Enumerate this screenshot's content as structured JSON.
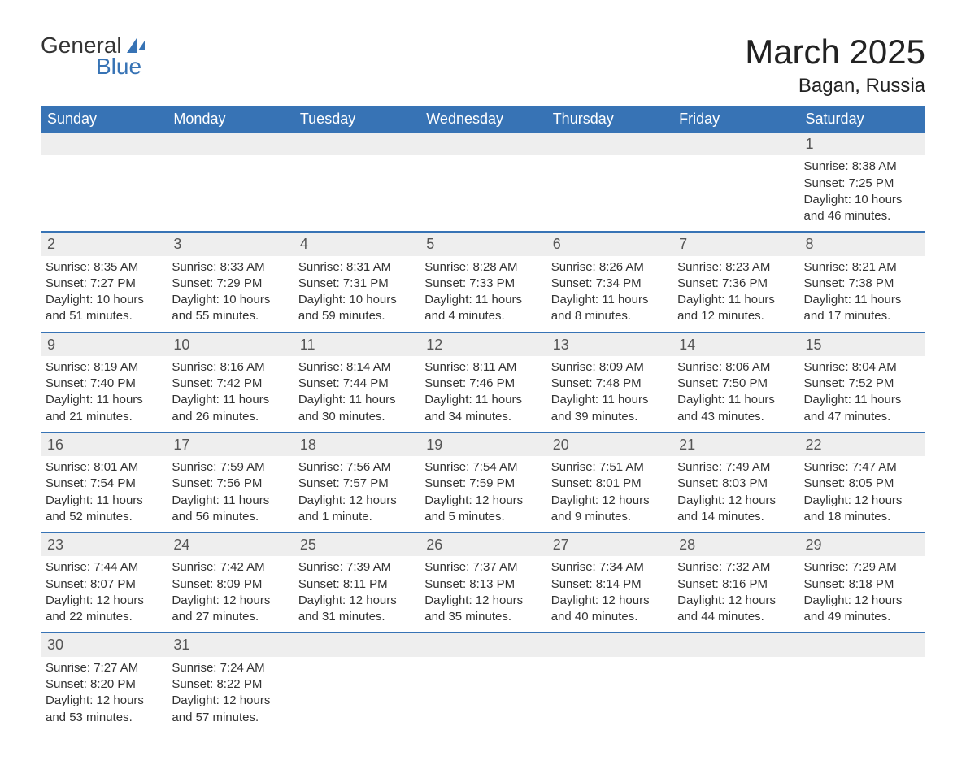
{
  "brand": {
    "word1": "General",
    "word2": "Blue"
  },
  "title": "March 2025",
  "location": "Bagan, Russia",
  "colors": {
    "header_bg": "#3773b5",
    "header_text": "#ffffff",
    "daynum_bg": "#eeeeee",
    "row_border": "#3773b5",
    "body_text": "#333333",
    "background": "#ffffff"
  },
  "weekdays": [
    "Sunday",
    "Monday",
    "Tuesday",
    "Wednesday",
    "Thursday",
    "Friday",
    "Saturday"
  ],
  "weeks": [
    [
      null,
      null,
      null,
      null,
      null,
      null,
      {
        "n": "1",
        "sunrise": "Sunrise: 8:38 AM",
        "sunset": "Sunset: 7:25 PM",
        "day": "Daylight: 10 hours and 46 minutes."
      }
    ],
    [
      {
        "n": "2",
        "sunrise": "Sunrise: 8:35 AM",
        "sunset": "Sunset: 7:27 PM",
        "day": "Daylight: 10 hours and 51 minutes."
      },
      {
        "n": "3",
        "sunrise": "Sunrise: 8:33 AM",
        "sunset": "Sunset: 7:29 PM",
        "day": "Daylight: 10 hours and 55 minutes."
      },
      {
        "n": "4",
        "sunrise": "Sunrise: 8:31 AM",
        "sunset": "Sunset: 7:31 PM",
        "day": "Daylight: 10 hours and 59 minutes."
      },
      {
        "n": "5",
        "sunrise": "Sunrise: 8:28 AM",
        "sunset": "Sunset: 7:33 PM",
        "day": "Daylight: 11 hours and 4 minutes."
      },
      {
        "n": "6",
        "sunrise": "Sunrise: 8:26 AM",
        "sunset": "Sunset: 7:34 PM",
        "day": "Daylight: 11 hours and 8 minutes."
      },
      {
        "n": "7",
        "sunrise": "Sunrise: 8:23 AM",
        "sunset": "Sunset: 7:36 PM",
        "day": "Daylight: 11 hours and 12 minutes."
      },
      {
        "n": "8",
        "sunrise": "Sunrise: 8:21 AM",
        "sunset": "Sunset: 7:38 PM",
        "day": "Daylight: 11 hours and 17 minutes."
      }
    ],
    [
      {
        "n": "9",
        "sunrise": "Sunrise: 8:19 AM",
        "sunset": "Sunset: 7:40 PM",
        "day": "Daylight: 11 hours and 21 minutes."
      },
      {
        "n": "10",
        "sunrise": "Sunrise: 8:16 AM",
        "sunset": "Sunset: 7:42 PM",
        "day": "Daylight: 11 hours and 26 minutes."
      },
      {
        "n": "11",
        "sunrise": "Sunrise: 8:14 AM",
        "sunset": "Sunset: 7:44 PM",
        "day": "Daylight: 11 hours and 30 minutes."
      },
      {
        "n": "12",
        "sunrise": "Sunrise: 8:11 AM",
        "sunset": "Sunset: 7:46 PM",
        "day": "Daylight: 11 hours and 34 minutes."
      },
      {
        "n": "13",
        "sunrise": "Sunrise: 8:09 AM",
        "sunset": "Sunset: 7:48 PM",
        "day": "Daylight: 11 hours and 39 minutes."
      },
      {
        "n": "14",
        "sunrise": "Sunrise: 8:06 AM",
        "sunset": "Sunset: 7:50 PM",
        "day": "Daylight: 11 hours and 43 minutes."
      },
      {
        "n": "15",
        "sunrise": "Sunrise: 8:04 AM",
        "sunset": "Sunset: 7:52 PM",
        "day": "Daylight: 11 hours and 47 minutes."
      }
    ],
    [
      {
        "n": "16",
        "sunrise": "Sunrise: 8:01 AM",
        "sunset": "Sunset: 7:54 PM",
        "day": "Daylight: 11 hours and 52 minutes."
      },
      {
        "n": "17",
        "sunrise": "Sunrise: 7:59 AM",
        "sunset": "Sunset: 7:56 PM",
        "day": "Daylight: 11 hours and 56 minutes."
      },
      {
        "n": "18",
        "sunrise": "Sunrise: 7:56 AM",
        "sunset": "Sunset: 7:57 PM",
        "day": "Daylight: 12 hours and 1 minute."
      },
      {
        "n": "19",
        "sunrise": "Sunrise: 7:54 AM",
        "sunset": "Sunset: 7:59 PM",
        "day": "Daylight: 12 hours and 5 minutes."
      },
      {
        "n": "20",
        "sunrise": "Sunrise: 7:51 AM",
        "sunset": "Sunset: 8:01 PM",
        "day": "Daylight: 12 hours and 9 minutes."
      },
      {
        "n": "21",
        "sunrise": "Sunrise: 7:49 AM",
        "sunset": "Sunset: 8:03 PM",
        "day": "Daylight: 12 hours and 14 minutes."
      },
      {
        "n": "22",
        "sunrise": "Sunrise: 7:47 AM",
        "sunset": "Sunset: 8:05 PM",
        "day": "Daylight: 12 hours and 18 minutes."
      }
    ],
    [
      {
        "n": "23",
        "sunrise": "Sunrise: 7:44 AM",
        "sunset": "Sunset: 8:07 PM",
        "day": "Daylight: 12 hours and 22 minutes."
      },
      {
        "n": "24",
        "sunrise": "Sunrise: 7:42 AM",
        "sunset": "Sunset: 8:09 PM",
        "day": "Daylight: 12 hours and 27 minutes."
      },
      {
        "n": "25",
        "sunrise": "Sunrise: 7:39 AM",
        "sunset": "Sunset: 8:11 PM",
        "day": "Daylight: 12 hours and 31 minutes."
      },
      {
        "n": "26",
        "sunrise": "Sunrise: 7:37 AM",
        "sunset": "Sunset: 8:13 PM",
        "day": "Daylight: 12 hours and 35 minutes."
      },
      {
        "n": "27",
        "sunrise": "Sunrise: 7:34 AM",
        "sunset": "Sunset: 8:14 PM",
        "day": "Daylight: 12 hours and 40 minutes."
      },
      {
        "n": "28",
        "sunrise": "Sunrise: 7:32 AM",
        "sunset": "Sunset: 8:16 PM",
        "day": "Daylight: 12 hours and 44 minutes."
      },
      {
        "n": "29",
        "sunrise": "Sunrise: 7:29 AM",
        "sunset": "Sunset: 8:18 PM",
        "day": "Daylight: 12 hours and 49 minutes."
      }
    ],
    [
      {
        "n": "30",
        "sunrise": "Sunrise: 7:27 AM",
        "sunset": "Sunset: 8:20 PM",
        "day": "Daylight: 12 hours and 53 minutes."
      },
      {
        "n": "31",
        "sunrise": "Sunrise: 7:24 AM",
        "sunset": "Sunset: 8:22 PM",
        "day": "Daylight: 12 hours and 57 minutes."
      },
      null,
      null,
      null,
      null,
      null
    ]
  ]
}
